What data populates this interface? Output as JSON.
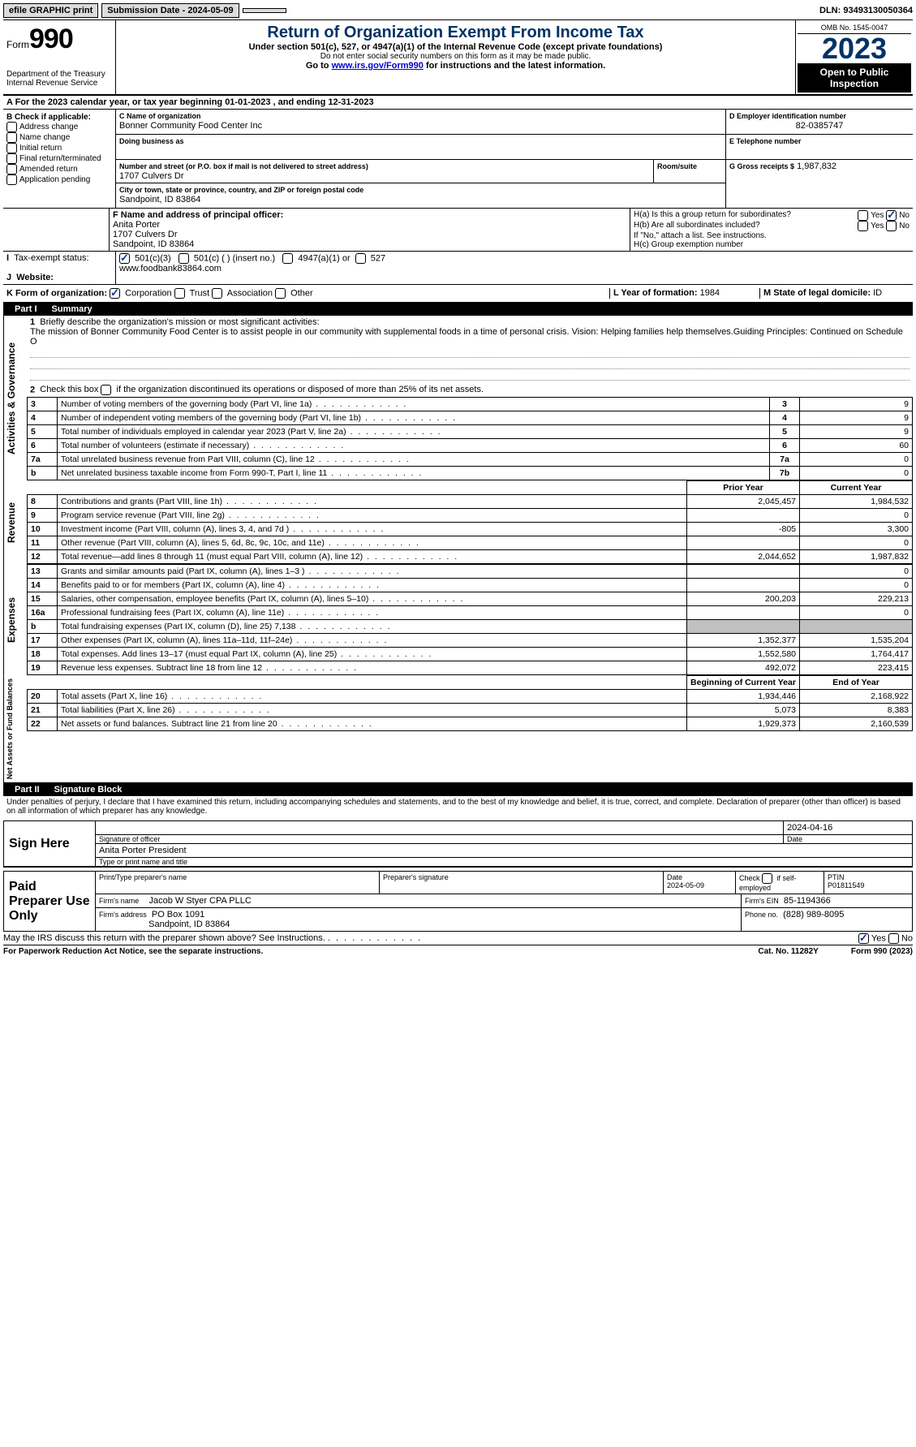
{
  "topbar": {
    "efile": "efile GRAPHIC print",
    "submission": "Submission Date - 2024-05-09",
    "dln": "DLN: 93493130050364"
  },
  "header": {
    "form_label": "Form",
    "form_number": "990",
    "title": "Return of Organization Exempt From Income Tax",
    "subtitle": "Under section 501(c), 527, or 4947(a)(1) of the Internal Revenue Code (except private foundations)",
    "warn": "Do not enter social security numbers on this form as it may be made public.",
    "goto_pre": "Go to ",
    "goto_link": "www.irs.gov/Form990",
    "goto_post": " for instructions and the latest information.",
    "dept": "Department of the Treasury",
    "irs": "Internal Revenue Service",
    "omb": "OMB No. 1545-0047",
    "year": "2023",
    "open": "Open to Public Inspection"
  },
  "sectionA": "A For the 2023 calendar year, or tax year beginning 01-01-2023    , and ending 12-31-2023",
  "boxB": {
    "label": "B Check if applicable:",
    "items": [
      "Address change",
      "Name change",
      "Initial return",
      "Final return/terminated",
      "Amended return",
      "Application pending"
    ]
  },
  "boxC": {
    "name_label": "C Name of organization",
    "name": "Bonner Community Food Center Inc",
    "dba_label": "Doing business as",
    "street_label": "Number and street (or P.O. box if mail is not delivered to street address)",
    "room_label": "Room/suite",
    "street": "1707 Culvers Dr",
    "city_label": "City or town, state or province, country, and ZIP or foreign postal code",
    "city": "Sandpoint, ID  83864"
  },
  "boxD": {
    "label": "D Employer identification number",
    "value": "82-0385747",
    "e_label": "E Telephone number",
    "g_label": "G Gross receipts $",
    "g_value": "1,987,832"
  },
  "boxF": {
    "label": "F  Name and address of principal officer:",
    "name": "Anita Porter",
    "addr1": "1707 Culvers Dr",
    "addr2": "Sandpoint, ID  83864"
  },
  "boxH": {
    "a": "H(a)  Is this a group return for subordinates?",
    "b": "H(b)  Are all subordinates included?",
    "b_note": "If \"No,\" attach a list. See instructions.",
    "c": "H(c)  Group exemption number"
  },
  "taxExempt": {
    "label": "Tax-exempt status:",
    "opt1": "501(c)(3)",
    "opt2": "501(c) (  ) (insert no.)",
    "opt3": "4947(a)(1) or",
    "opt4": "527"
  },
  "website": {
    "label": "Website:",
    "value": "www.foodbank83864.com"
  },
  "boxK": {
    "label": "K Form of organization:",
    "opts": [
      "Corporation",
      "Trust",
      "Association",
      "Other"
    ]
  },
  "boxL": {
    "label": "L Year of formation:",
    "value": "1984"
  },
  "boxM": {
    "label": "M State of legal domicile:",
    "value": "ID"
  },
  "part1": {
    "title": "Part I",
    "name": "Summary",
    "q1": "Briefly describe the organization's mission or most significant activities:",
    "mission": "The mission of Bonner Community Food Center is to assist people in our community with supplemental foods in a time of personal crisis. Vision: Helping families help themselves.Guiding Principles: Continued on Schedule O",
    "q2": "Check this box    if the organization discontinued its operations or disposed of more than 25% of its net assets.",
    "lines": [
      {
        "n": "3",
        "d": "Number of voting members of the governing body (Part VI, line 1a)",
        "ref": "3",
        "v": "9"
      },
      {
        "n": "4",
        "d": "Number of independent voting members of the governing body (Part VI, line 1b)",
        "ref": "4",
        "v": "9"
      },
      {
        "n": "5",
        "d": "Total number of individuals employed in calendar year 2023 (Part V, line 2a)",
        "ref": "5",
        "v": "9"
      },
      {
        "n": "6",
        "d": "Total number of volunteers (estimate if necessary)",
        "ref": "6",
        "v": "60"
      },
      {
        "n": "7a",
        "d": "Total unrelated business revenue from Part VIII, column (C), line 12",
        "ref": "7a",
        "v": "0"
      },
      {
        "n": "b",
        "d": "Net unrelated business taxable income from Form 990-T, Part I, line 11",
        "ref": "7b",
        "v": "0"
      }
    ],
    "col_prior": "Prior Year",
    "col_current": "Current Year",
    "col_begin": "Beginning of Current Year",
    "col_end": "End of Year",
    "revenue": [
      {
        "n": "8",
        "d": "Contributions and grants (Part VIII, line 1h)",
        "p": "2,045,457",
        "c": "1,984,532"
      },
      {
        "n": "9",
        "d": "Program service revenue (Part VIII, line 2g)",
        "p": "",
        "c": "0"
      },
      {
        "n": "10",
        "d": "Investment income (Part VIII, column (A), lines 3, 4, and 7d )",
        "p": "-805",
        "c": "3,300"
      },
      {
        "n": "11",
        "d": "Other revenue (Part VIII, column (A), lines 5, 6d, 8c, 9c, 10c, and 11e)",
        "p": "",
        "c": "0"
      },
      {
        "n": "12",
        "d": "Total revenue—add lines 8 through 11 (must equal Part VIII, column (A), line 12)",
        "p": "2,044,652",
        "c": "1,987,832"
      }
    ],
    "expenses": [
      {
        "n": "13",
        "d": "Grants and similar amounts paid (Part IX, column (A), lines 1–3 )",
        "p": "",
        "c": "0"
      },
      {
        "n": "14",
        "d": "Benefits paid to or for members (Part IX, column (A), line 4)",
        "p": "",
        "c": "0"
      },
      {
        "n": "15",
        "d": "Salaries, other compensation, employee benefits (Part IX, column (A), lines 5–10)",
        "p": "200,203",
        "c": "229,213"
      },
      {
        "n": "16a",
        "d": "Professional fundraising fees (Part IX, column (A), line 11e)",
        "p": "",
        "c": "0"
      },
      {
        "n": "b",
        "d": "Total fundraising expenses (Part IX, column (D), line 25) 7,138",
        "p": "shaded",
        "c": "shaded"
      },
      {
        "n": "17",
        "d": "Other expenses (Part IX, column (A), lines 11a–11d, 11f–24e)",
        "p": "1,352,377",
        "c": "1,535,204"
      },
      {
        "n": "18",
        "d": "Total expenses. Add lines 13–17 (must equal Part IX, column (A), line 25)",
        "p": "1,552,580",
        "c": "1,764,417"
      },
      {
        "n": "19",
        "d": "Revenue less expenses. Subtract line 18 from line 12",
        "p": "492,072",
        "c": "223,415"
      }
    ],
    "netassets": [
      {
        "n": "20",
        "d": "Total assets (Part X, line 16)",
        "p": "1,934,446",
        "c": "2,168,922"
      },
      {
        "n": "21",
        "d": "Total liabilities (Part X, line 26)",
        "p": "5,073",
        "c": "8,383"
      },
      {
        "n": "22",
        "d": "Net assets or fund balances. Subtract line 21 from line 20",
        "p": "1,929,373",
        "c": "2,160,539"
      }
    ],
    "vlabels": {
      "gov": "Activities & Governance",
      "rev": "Revenue",
      "exp": "Expenses",
      "net": "Net Assets or Fund Balances"
    }
  },
  "part2": {
    "title": "Part II",
    "name": "Signature Block",
    "declaration": "Under penalties of perjury, I declare that I have examined this return, including accompanying schedules and statements, and to the best of my knowledge and belief, it is true, correct, and complete. Declaration of preparer (other than officer) is based on all information of which preparer has any knowledge."
  },
  "sign": {
    "here": "Sign Here",
    "sig_officer": "Signature of officer",
    "officer_name": "Anita Porter President",
    "type_label": "Type or print name and title",
    "date": "2024-04-16",
    "date_label": "Date"
  },
  "paid": {
    "label": "Paid Preparer Use Only",
    "print_label": "Print/Type preparer's name",
    "sig_label": "Preparer's signature",
    "date_label": "Date",
    "date": "2024-05-09",
    "check_label": "Check       if self-employed",
    "ptin_label": "PTIN",
    "ptin": "P01811549",
    "firm_name_label": "Firm's name",
    "firm_name": "Jacob W Styer CPA PLLC",
    "firm_ein_label": "Firm's EIN",
    "firm_ein": "85-1194366",
    "firm_addr_label": "Firm's address",
    "firm_addr": "PO Box 1091",
    "firm_city": "Sandpoint, ID  83864",
    "phone_label": "Phone no.",
    "phone": "(828) 989-8095"
  },
  "discuss": "May the IRS discuss this return with the preparer shown above? See Instructions.",
  "footer": {
    "left": "For Paperwork Reduction Act Notice, see the separate instructions.",
    "mid": "Cat. No. 11282Y",
    "right": "Form 990 (2023)"
  },
  "yes": "Yes",
  "no": "No"
}
